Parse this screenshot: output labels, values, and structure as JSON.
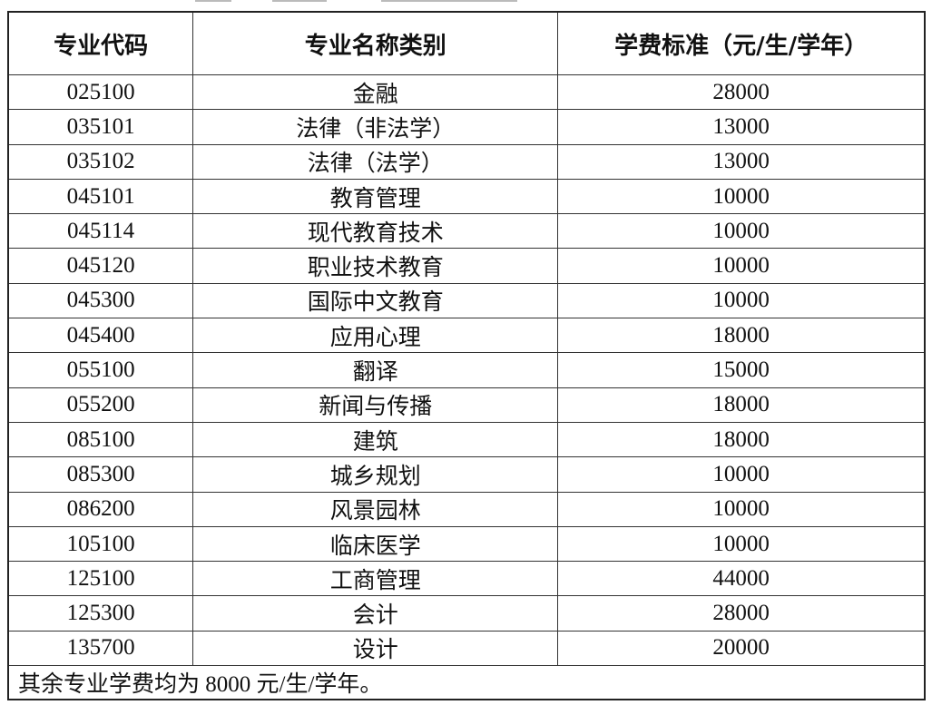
{
  "headers": [
    "专业代码",
    "专业名称类别",
    "学费标准（元/生/学年）"
  ],
  "rows": [
    {
      "code": "025100",
      "name": "金融",
      "fee": "28000"
    },
    {
      "code": "035101",
      "name": "法律（非法学）",
      "fee": "13000"
    },
    {
      "code": "035102",
      "name": "法律（法学）",
      "fee": "13000"
    },
    {
      "code": "045101",
      "name": "教育管理",
      "fee": "10000"
    },
    {
      "code": "045114",
      "name": "现代教育技术",
      "fee": "10000"
    },
    {
      "code": "045120",
      "name": "职业技术教育",
      "fee": "10000"
    },
    {
      "code": "045300",
      "name": "国际中文教育",
      "fee": "10000"
    },
    {
      "code": "045400",
      "name": "应用心理",
      "fee": "18000"
    },
    {
      "code": "055100",
      "name": "翻译",
      "fee": "15000"
    },
    {
      "code": "055200",
      "name": "新闻与传播",
      "fee": "18000"
    },
    {
      "code": "085100",
      "name": "建筑",
      "fee": "18000"
    },
    {
      "code": "085300",
      "name": "城乡规划",
      "fee": "10000"
    },
    {
      "code": "086200",
      "name": "风景园林",
      "fee": "10000"
    },
    {
      "code": "105100",
      "name": "临床医学",
      "fee": "10000"
    },
    {
      "code": "125100",
      "name": "工商管理",
      "fee": "44000"
    },
    {
      "code": "125300",
      "name": "会计",
      "fee": "28000"
    },
    {
      "code": "135700",
      "name": "设计",
      "fee": "20000"
    }
  ],
  "note": "其余专业学费均为 8000 元/生/学年。"
}
